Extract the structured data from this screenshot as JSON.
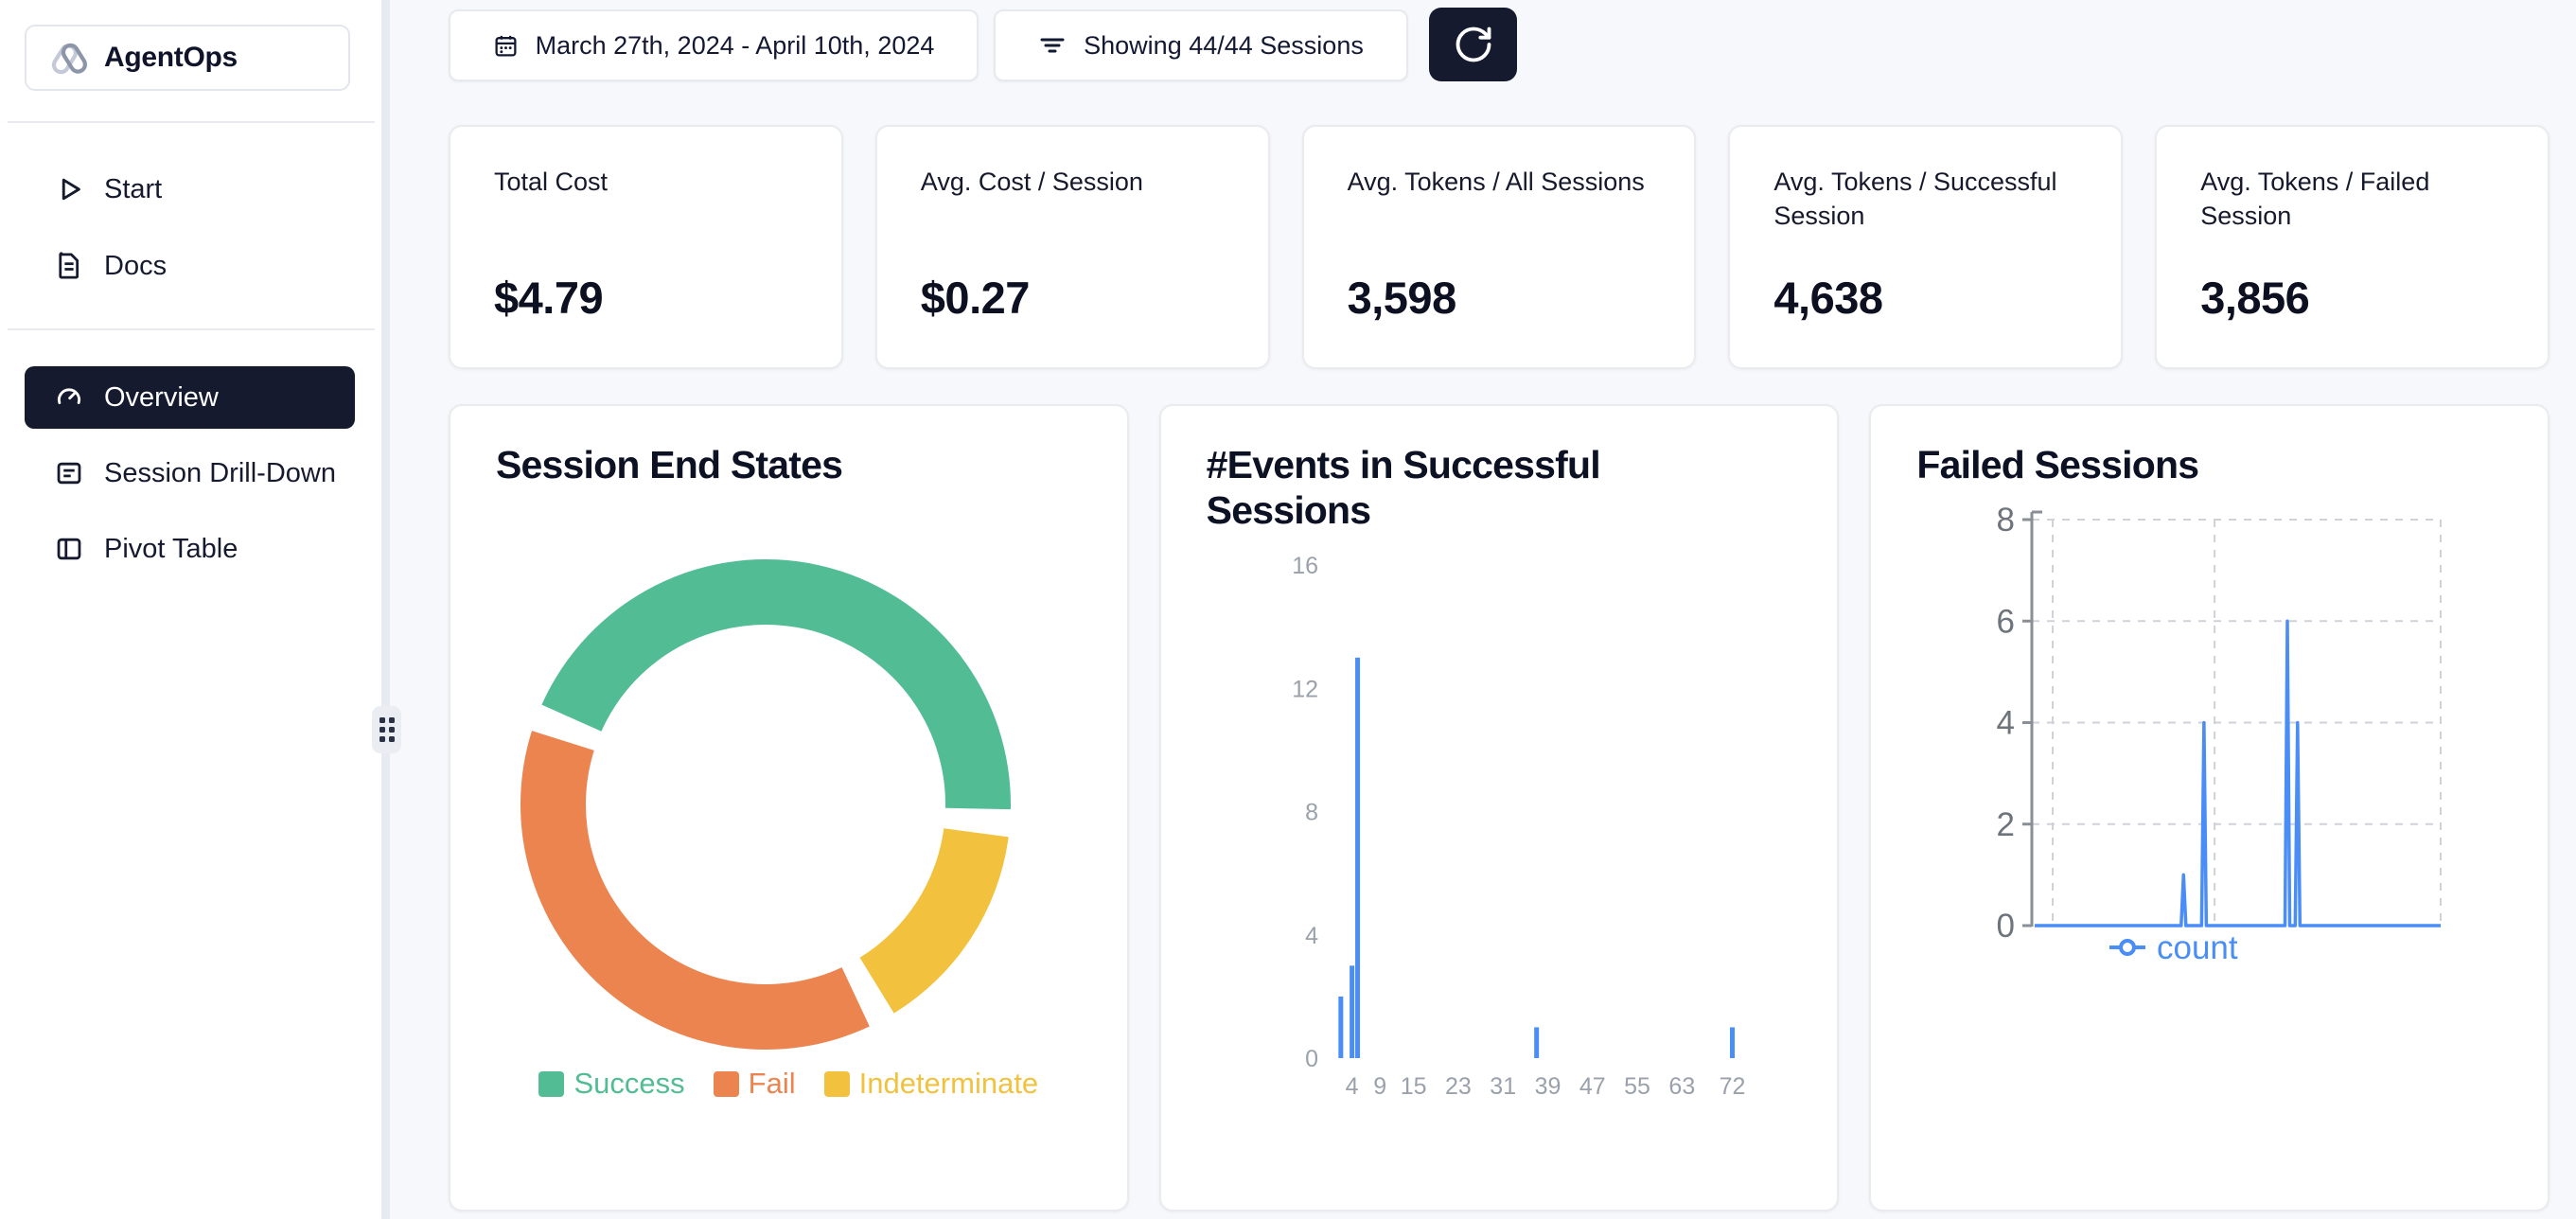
{
  "app": {
    "name": "AgentOps"
  },
  "sidebar": {
    "logo_label": "AgentOps",
    "items": [
      {
        "label": "Start",
        "icon": "play-icon",
        "active": false
      },
      {
        "label": "Docs",
        "icon": "document-icon",
        "active": false
      },
      {
        "label": "Overview",
        "icon": "gauge-icon",
        "active": true
      },
      {
        "label": "Session Drill-Down",
        "icon": "list-box-icon",
        "active": false
      },
      {
        "label": "Pivot Table",
        "icon": "pivot-icon",
        "active": false
      }
    ]
  },
  "topbar": {
    "date_range": "March 27th, 2024 - April 10th, 2024",
    "filter_label": "Showing 44/44 Sessions",
    "refresh_icon": "refresh-icon"
  },
  "stats": {
    "cards": [
      {
        "label": "Total Cost",
        "value": "$4.79"
      },
      {
        "label": "Avg. Cost / Session",
        "value": "$0.27"
      },
      {
        "label": "Avg. Tokens / All Sessions",
        "value": "3,598"
      },
      {
        "label": "Avg. Tokens / Successful Session",
        "value": "4,638"
      },
      {
        "label": "Avg. Tokens / Failed Session",
        "value": "3,856"
      }
    ]
  },
  "chart_data": [
    {
      "type": "pie",
      "title": "Session End States",
      "total_sessions": 44,
      "segments": [
        {
          "label": "Success",
          "value": 20,
          "color": "#52bd95"
        },
        {
          "label": "Fail",
          "value": 17,
          "color": "#ec8450"
        },
        {
          "label": "Indeterminate",
          "value": 7,
          "color": "#f2c23e"
        }
      ],
      "draw_order": [
        0,
        2,
        1
      ],
      "start_angle": -66,
      "pad_angle": 6.5,
      "legend_position": "bottom"
    },
    {
      "type": "bar",
      "title": "#Events in Successful Sessions",
      "x": [
        2,
        4,
        5,
        37,
        72
      ],
      "values": [
        2,
        3,
        13,
        1,
        1
      ],
      "x_ticks": [
        4,
        9,
        15,
        23,
        31,
        39,
        47,
        55,
        63,
        72
      ],
      "y_ticks": [
        0,
        4,
        8,
        12,
        16
      ],
      "xlim": [
        0,
        77
      ],
      "ylim": [
        0,
        16
      ],
      "bar_color": "#4a8df6",
      "grid": false
    },
    {
      "type": "line",
      "title": "Failed Sessions",
      "series": [
        {
          "name": "count",
          "color": "#4a8df6"
        }
      ],
      "spikes": [
        {
          "x": 0.371,
          "y": 1
        },
        {
          "x": 0.421,
          "y": 4
        },
        {
          "x": 0.625,
          "y": 6
        },
        {
          "x": 0.65,
          "y": 4
        }
      ],
      "baseline": 0,
      "y_ticks": [
        0,
        2,
        4,
        6,
        8
      ],
      "ylim": [
        0,
        8
      ],
      "v_gridlines": [
        0.051,
        0.447,
        1.0
      ],
      "grid": "dashed",
      "legend_label": "count",
      "legend_position": "bottom"
    }
  ],
  "colors": {
    "accent_dark": "#161a2f",
    "success": "#52bd95",
    "fail": "#ec8450",
    "indeterminate": "#f2c23e",
    "series_blue": "#4a8df6",
    "page_bg": "#f7f8fb"
  }
}
